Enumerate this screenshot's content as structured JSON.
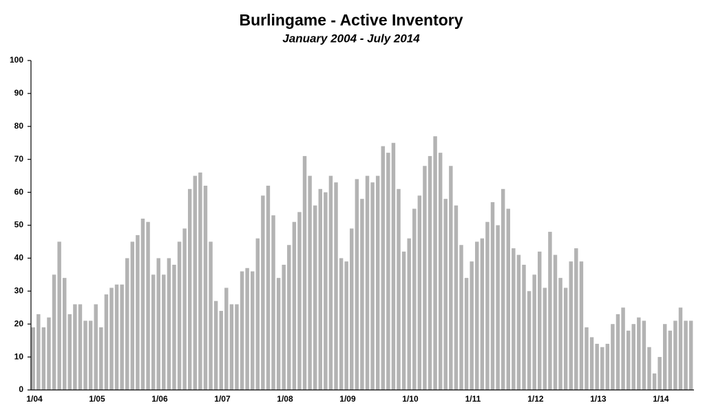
{
  "chart_data": {
    "type": "bar",
    "title": "Burlingame - Active Inventory",
    "subtitle": "January 2004 - July 2014",
    "categories": [
      "1/04",
      null,
      null,
      null,
      null,
      null,
      null,
      null,
      null,
      null,
      null,
      null,
      "1/05",
      null,
      null,
      null,
      null,
      null,
      null,
      null,
      null,
      null,
      null,
      null,
      "1/06",
      null,
      null,
      null,
      null,
      null,
      null,
      null,
      null,
      null,
      null,
      null,
      "1/07",
      null,
      null,
      null,
      null,
      null,
      null,
      null,
      null,
      null,
      null,
      null,
      "1/08",
      null,
      null,
      null,
      null,
      null,
      null,
      null,
      null,
      null,
      null,
      null,
      "1/09",
      null,
      null,
      null,
      null,
      null,
      null,
      null,
      null,
      null,
      null,
      null,
      "1/10",
      null,
      null,
      null,
      null,
      null,
      null,
      null,
      null,
      null,
      null,
      null,
      "1/11",
      null,
      null,
      null,
      null,
      null,
      null,
      null,
      null,
      null,
      null,
      null,
      "1/12",
      null,
      null,
      null,
      null,
      null,
      null,
      null,
      null,
      null,
      null,
      null,
      "1/13",
      null,
      null,
      null,
      null,
      null,
      null,
      null,
      null,
      null,
      null,
      null,
      "1/14",
      null,
      null,
      null,
      null,
      null,
      null
    ],
    "values": [
      19,
      23,
      19,
      22,
      35,
      45,
      34,
      23,
      26,
      26,
      21,
      21,
      26,
      19,
      29,
      31,
      32,
      32,
      40,
      45,
      47,
      52,
      51,
      35,
      40,
      35,
      40,
      38,
      45,
      49,
      61,
      65,
      66,
      62,
      45,
      27,
      24,
      31,
      26,
      26,
      36,
      37,
      36,
      46,
      59,
      62,
      53,
      34,
      38,
      44,
      51,
      54,
      71,
      65,
      56,
      61,
      60,
      65,
      63,
      40,
      39,
      49,
      64,
      58,
      65,
      63,
      65,
      74,
      72,
      75,
      61,
      42,
      46,
      55,
      59,
      68,
      71,
      77,
      72,
      58,
      68,
      56,
      44,
      34,
      39,
      45,
      46,
      51,
      57,
      50,
      61,
      55,
      43,
      41,
      38,
      30,
      35,
      42,
      31,
      48,
      41,
      34,
      31,
      39,
      43,
      39,
      19,
      16,
      14,
      13,
      14,
      20,
      23,
      25,
      18,
      20,
      22,
      21,
      13,
      5,
      10,
      20,
      18,
      21,
      25,
      21,
      21
    ],
    "color": "#b3b3b3",
    "ylim": [
      0,
      100
    ],
    "yticks": [
      0,
      10,
      20,
      30,
      40,
      50,
      60,
      70,
      80,
      90,
      100
    ],
    "grid": false
  }
}
